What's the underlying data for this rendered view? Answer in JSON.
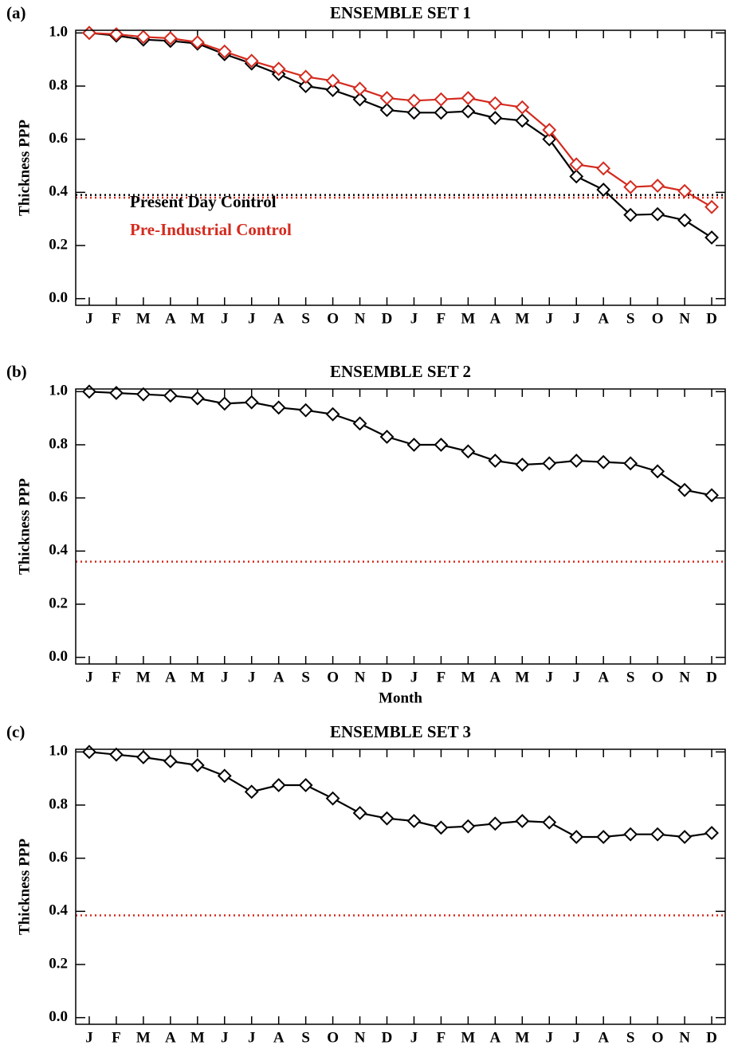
{
  "chart_data": [
    {
      "type": "line",
      "label": "(a)",
      "title": "ENSEMBLE SET 1",
      "ylabel": "Thickness PPP",
      "categories": [
        "J",
        "F",
        "M",
        "A",
        "M",
        "J",
        "J",
        "A",
        "S",
        "O",
        "N",
        "D",
        "J",
        "F",
        "M",
        "A",
        "M",
        "J",
        "J",
        "A",
        "S",
        "O",
        "N",
        "D"
      ],
      "series": [
        {
          "name": "Present Day Control",
          "color": "#000000",
          "values": [
            1.0,
            0.99,
            0.975,
            0.97,
            0.96,
            0.92,
            0.885,
            0.845,
            0.8,
            0.785,
            0.75,
            0.71,
            0.7,
            0.7,
            0.705,
            0.68,
            0.67,
            0.6,
            0.46,
            0.41,
            0.315,
            0.318,
            0.295,
            0.23
          ]
        },
        {
          "name": "Pre-Industrial Control",
          "color": "#d42a1e",
          "values": [
            1.0,
            0.995,
            0.985,
            0.98,
            0.965,
            0.93,
            0.895,
            0.865,
            0.835,
            0.82,
            0.79,
            0.755,
            0.745,
            0.75,
            0.755,
            0.735,
            0.72,
            0.635,
            0.505,
            0.49,
            0.42,
            0.425,
            0.405,
            0.345
          ]
        }
      ],
      "hlines": [
        {
          "value": 0.39,
          "color": "#000000"
        },
        {
          "value": 0.38,
          "color": "#d42a1e"
        }
      ],
      "ylim": [
        -0.025,
        1.01
      ],
      "yticks": [
        {
          "value": 0,
          "label": "0.0"
        },
        0.2,
        0.4,
        0.6,
        0.8,
        {
          "value": 1,
          "label": "1.0"
        }
      ],
      "legend": "left"
    },
    {
      "type": "line",
      "label": "(b)",
      "title": "ENSEMBLE SET 2",
      "ylabel": "Thickness PPP",
      "xlabel": "Month",
      "categories": [
        "J",
        "F",
        "M",
        "A",
        "M",
        "J",
        "J",
        "A",
        "S",
        "O",
        "N",
        "D",
        "J",
        "F",
        "M",
        "A",
        "M",
        "J",
        "J",
        "A",
        "S",
        "O",
        "N",
        "D"
      ],
      "series": [
        {
          "color": "#000000",
          "values": [
            1.0,
            0.995,
            0.99,
            0.985,
            0.975,
            0.955,
            0.96,
            0.94,
            0.93,
            0.915,
            0.88,
            0.83,
            0.8,
            0.8,
            0.775,
            0.74,
            0.725,
            0.73,
            0.74,
            0.735,
            0.73,
            0.7,
            0.63,
            0.61
          ]
        }
      ],
      "hlines": [
        {
          "value": 0.36,
          "color": "#d42a1e"
        }
      ],
      "ylim": [
        -0.025,
        1.01
      ],
      "yticks": [
        {
          "value": 0,
          "label": "0.0"
        },
        0.2,
        0.4,
        0.6,
        0.8,
        {
          "value": 1,
          "label": "1.0"
        }
      ]
    },
    {
      "type": "line",
      "label": "(c)",
      "title": "ENSEMBLE SET 3",
      "ylabel": "Thickness PPP",
      "categories": [
        "J",
        "F",
        "M",
        "A",
        "M",
        "J",
        "J",
        "A",
        "S",
        "O",
        "N",
        "D",
        "J",
        "F",
        "M",
        "A",
        "M",
        "J",
        "J",
        "A",
        "S",
        "O",
        "N",
        "D"
      ],
      "series": [
        {
          "color": "#000000",
          "values": [
            1.0,
            0.99,
            0.98,
            0.965,
            0.95,
            0.91,
            0.85,
            0.875,
            0.875,
            0.825,
            0.77,
            0.75,
            0.74,
            0.715,
            0.72,
            0.73,
            0.74,
            0.735,
            0.68,
            0.68,
            0.69,
            0.69,
            0.68,
            0.695
          ]
        }
      ],
      "hlines": [
        {
          "value": 0.385,
          "color": "#d42a1e"
        }
      ],
      "ylim": [
        -0.025,
        1.01
      ],
      "yticks": [
        {
          "value": 0,
          "label": "0.0"
        },
        0.2,
        0.4,
        0.6,
        0.8,
        {
          "value": 1,
          "label": "1.0"
        }
      ]
    }
  ]
}
